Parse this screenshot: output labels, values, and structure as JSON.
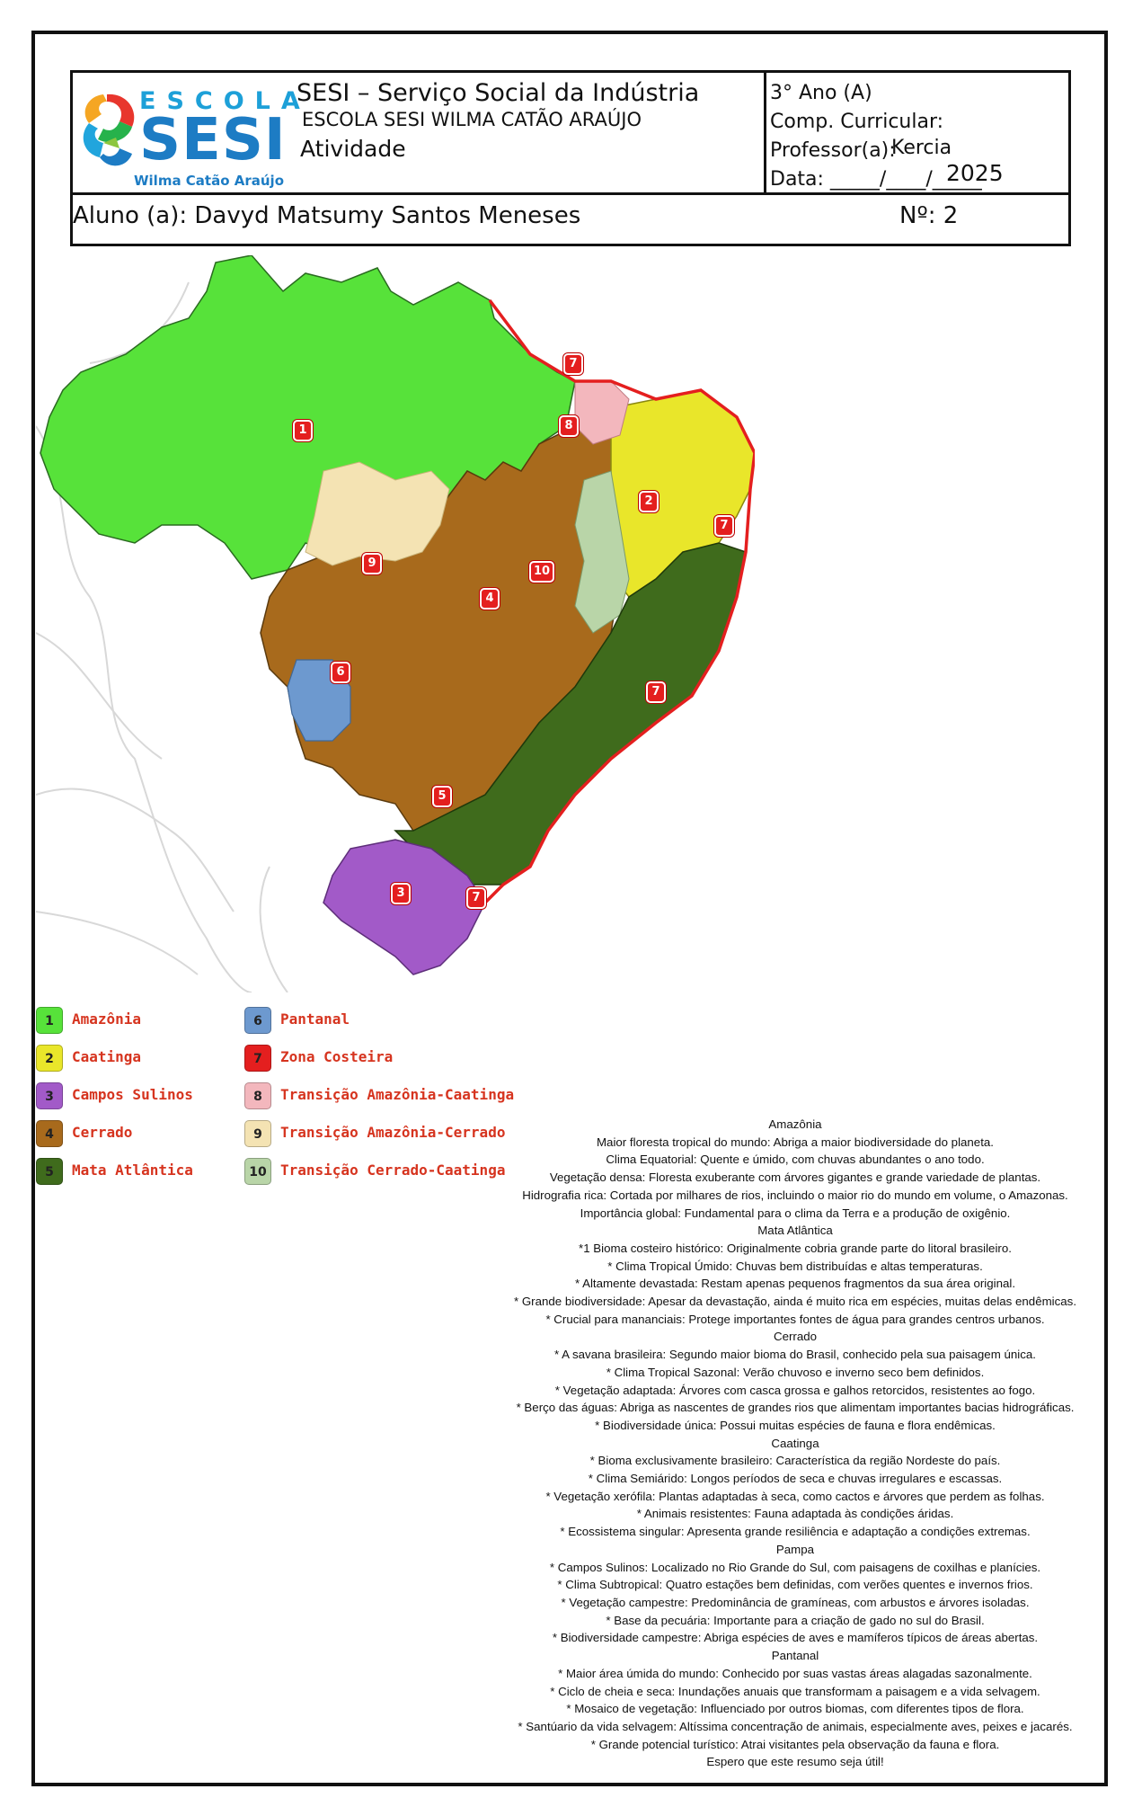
{
  "header": {
    "logo": {
      "top": "ESCOLA",
      "main": "SESI",
      "sub": "Wilma Catão Araújo"
    },
    "institution": "SESI – Serviço Social da Indústria",
    "school": "ESCOLA SESI WILMA CATÃO ARAÚJO",
    "doc_type": "Atividade",
    "grade": "3° Ano (A)",
    "subject_label": "Comp. Curricular:",
    "teacher_label": "Professor(a):",
    "teacher_name": "Kercia",
    "date_label": "Data: _____/____/_____",
    "date_year": "2025",
    "student_label": "Aluno (a): Davyd Matsumy Santos Meneses",
    "number_label": "Nº: 2"
  },
  "map": {
    "markers": [
      "1",
      "2",
      "3",
      "4",
      "5",
      "6",
      "7",
      "8",
      "9",
      "10"
    ]
  },
  "legend": [
    {
      "num": "1",
      "label": "Amazônia",
      "color": "#57e23a"
    },
    {
      "num": "2",
      "label": "Caatinga",
      "color": "#e9e62a"
    },
    {
      "num": "3",
      "label": "Campos Sulinos",
      "color": "#a25ac8"
    },
    {
      "num": "4",
      "label": "Cerrado",
      "color": "#a86a1c"
    },
    {
      "num": "5",
      "label": "Mata Atlântica",
      "color": "#3f6b1c"
    },
    {
      "num": "6",
      "label": "Pantanal",
      "color": "#6d99cf"
    },
    {
      "num": "7",
      "label": "Zona Costeira",
      "color": "#e41f1f"
    },
    {
      "num": "8",
      "label": "Transição Amazônia-Caatinga",
      "color": "#f3b7bd"
    },
    {
      "num": "9",
      "label": "Transição Amazônia-Cerrado",
      "color": "#f4e3b3"
    },
    {
      "num": "10",
      "label": "Transição Cerrado-Caatinga",
      "color": "#b9d5a8"
    }
  ],
  "summary_lines": [
    "Amazônia",
    "Maior floresta tropical do mundo: Abriga a maior biodiversidade do planeta.",
    "Clima Equatorial: Quente e úmido, com chuvas abundantes o ano todo.",
    "Vegetação densa: Floresta exuberante com árvores gigantes e grande variedade de plantas.",
    "Hidrografia rica: Cortada por milhares de rios, incluindo o maior rio do mundo em volume, o Amazonas.",
    "Importância global: Fundamental para o clima da Terra e a produção de oxigênio.",
    "Mata Atlântica",
    "*1 Bioma costeiro histórico: Originalmente cobria grande parte do litoral brasileiro.",
    "* Clima Tropical Úmido: Chuvas bem distribuídas e altas temperaturas.",
    "* Altamente devastada: Restam apenas pequenos fragmentos da sua área original.",
    "* Grande biodiversidade: Apesar da devastação, ainda é muito rica em espécies, muitas delas endêmicas.",
    "* Crucial para mananciais: Protege importantes fontes de água para grandes centros urbanos.",
    "Cerrado",
    "* A savana brasileira: Segundo maior bioma do Brasil, conhecido pela sua paisagem única.",
    "* Clima Tropical Sazonal: Verão chuvoso e inverno seco bem definidos.",
    "* Vegetação adaptada: Árvores com casca grossa e galhos retorcidos, resistentes ao fogo.",
    "* Berço das águas: Abriga as nascentes de grandes rios que alimentam importantes bacias hidrográficas.",
    "* Biodiversidade única: Possui muitas espécies de fauna e flora endêmicas.",
    "Caatinga",
    "* Bioma exclusivamente brasileiro: Característica da região Nordeste do país.",
    "* Clima Semiárido: Longos períodos de seca e chuvas irregulares e escassas.",
    "* Vegetação xerófila: Plantas adaptadas à seca, como cactos e árvores que perdem as folhas.",
    "* Animais resistentes: Fauna adaptada às condições áridas.",
    "* Ecossistema singular: Apresenta grande resiliência e adaptação a condições extremas.",
    "Pampa",
    "* Campos Sulinos: Localizado no Rio Grande do Sul, com paisagens de coxilhas e planícies.",
    "* Clima Subtropical: Quatro estações bem definidas, com verões quentes e invernos frios.",
    "* Vegetação campestre: Predominância de gramíneas, com arbustos e árvores isoladas.",
    "* Base da pecuária: Importante para a criação de gado no sul do Brasil.",
    "* Biodiversidade campestre: Abriga espécies de aves e mamíferos típicos de áreas abertas.",
    "Pantanal",
    "* Maior área úmida do mundo: Conhecido por suas vastas áreas alagadas sazonalmente.",
    "* Ciclo de cheia e seca: Inundações anuais que transformam a paisagem e a vida selvagem.",
    "* Mosaico de vegetação: Influenciado por outros biomas, com diferentes tipos de flora.",
    "* Santúario da vida selvagem: Altíssima concentração de animais, especialmente aves, peixes e jacarés.",
    "* Grande potencial turístico: Atrai visitantes pela observação da fauna e flora.",
    "Espero que este resumo seja útil!"
  ]
}
